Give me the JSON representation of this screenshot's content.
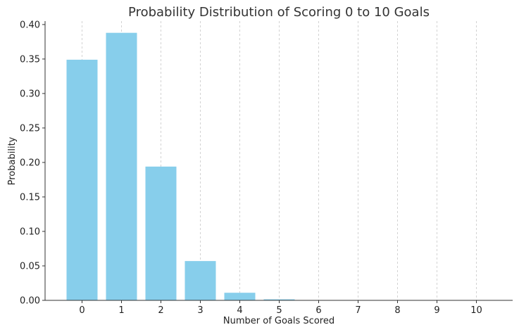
{
  "chart_data": {
    "type": "bar",
    "title": "Probability Distribution of Scoring 0 to 10 Goals",
    "xlabel": "Number of Goals Scored",
    "ylabel": "Probability",
    "categories": [
      "0",
      "1",
      "2",
      "3",
      "4",
      "5",
      "6",
      "7",
      "8",
      "9",
      "10"
    ],
    "values": [
      0.349,
      0.388,
      0.194,
      0.057,
      0.011,
      0.0015,
      0.0002,
      0.0,
      0.0,
      0.0,
      0.0
    ],
    "ylim": [
      0,
      0.405
    ],
    "yticks": [
      "0.00",
      "0.05",
      "0.10",
      "0.15",
      "0.20",
      "0.25",
      "0.30",
      "0.35",
      "0.40"
    ],
    "grid": "vertical-dashed",
    "bar_color": "#87ceeb"
  }
}
